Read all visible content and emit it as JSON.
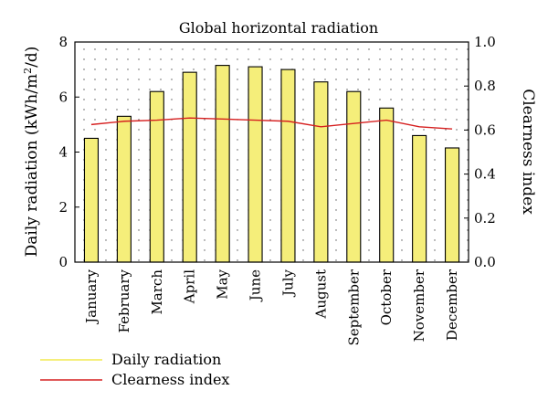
{
  "chart_data": {
    "type": "bar",
    "title": "Global horizontal radiation",
    "categories": [
      "January",
      "February",
      "March",
      "April",
      "May",
      "June",
      "July",
      "August",
      "September",
      "October",
      "November",
      "December"
    ],
    "series": [
      {
        "name": "Daily radiation",
        "type": "bar",
        "axis": "left",
        "color": "#f5ee7a",
        "values": [
          4.5,
          5.3,
          6.2,
          6.9,
          7.15,
          7.1,
          7.0,
          6.55,
          6.2,
          5.6,
          4.6,
          4.15
        ]
      },
      {
        "name": "Clearness index",
        "type": "line",
        "axis": "right",
        "color": "#d62020",
        "values": [
          0.625,
          0.64,
          0.645,
          0.655,
          0.65,
          0.645,
          0.64,
          0.615,
          0.63,
          0.645,
          0.615,
          0.605
        ]
      }
    ],
    "ylabel_left": "Daily radiation (kWh/m²/d)",
    "ylabel_right": "Clearness index",
    "ylim_left": [
      0,
      8
    ],
    "ylim_right": [
      0,
      1.0
    ],
    "yticks_left": [
      "0",
      "2",
      "4",
      "6",
      "8"
    ],
    "yticks_right": [
      "0.0",
      "0.2",
      "0.4",
      "0.6",
      "0.8",
      "1.0"
    ],
    "grid": "dotted",
    "legend_position": "bottom-left"
  }
}
